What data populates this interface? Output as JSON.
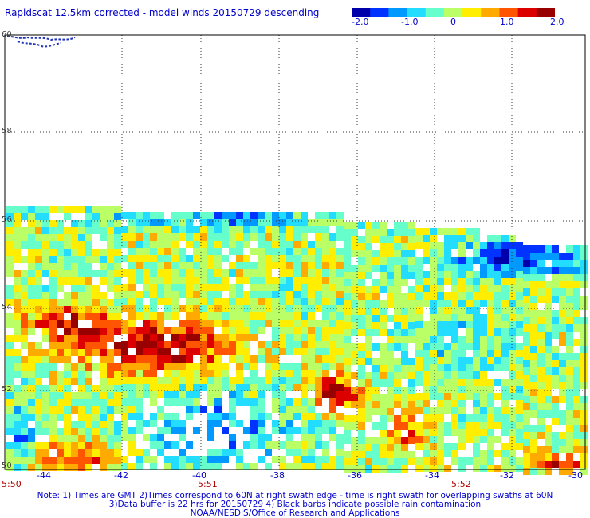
{
  "title": "Rapidscat 12.5km corrected - model winds 20150729 descending",
  "colorbar": {
    "colors": [
      "#0000aa",
      "#0033ff",
      "#0099ff",
      "#22ddff",
      "#66ffcc",
      "#bbff66",
      "#ffee00",
      "#ffaa00",
      "#ff5500",
      "#dd0000",
      "#990000"
    ],
    "ticks": [
      "-2.0",
      "-1.0",
      "0",
      "1.0",
      "2.0"
    ]
  },
  "map": {
    "lat_labels": [
      "60",
      "58",
      "56",
      "54",
      "52",
      "50"
    ],
    "lon_labels": [
      "-44",
      "-42",
      "-40",
      "-38",
      "-36",
      "-34",
      "-32",
      "-30"
    ],
    "time_labels": [
      "5:50",
      "5:51",
      "5:52"
    ],
    "lat_range": [
      50,
      60
    ],
    "lon_range": [
      -45,
      -30
    ],
    "grid": true
  },
  "notes": [
    "Note: 1) Times are GMT 2)Times correspond to 60N at right swath edge - time is right swath for overlapping swaths at 60N",
    "3)Data buffer is 22 hrs for 20150729 4) Black barbs indicate possible rain contamination",
    "NOAA/NESDIS/Office of Research and Applications"
  ]
}
